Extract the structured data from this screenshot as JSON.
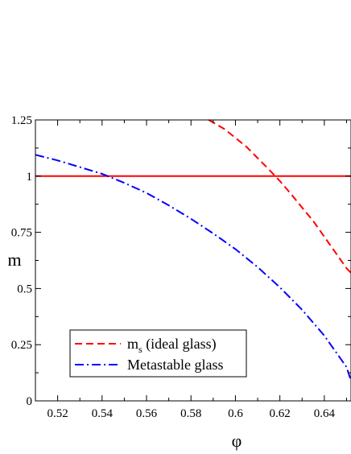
{
  "chart_data": {
    "type": "line",
    "title": "",
    "xlabel": "φ",
    "ylabel": "m",
    "xlim": [
      0.51,
      0.652
    ],
    "ylim": [
      0,
      1.25
    ],
    "xticks": [
      {
        "value": 0.52,
        "label": "0.52"
      },
      {
        "value": 0.54,
        "label": "0.54"
      },
      {
        "value": 0.56,
        "label": "0.56"
      },
      {
        "value": 0.58,
        "label": "0.58"
      },
      {
        "value": 0.6,
        "label": "0.6"
      },
      {
        "value": 0.62,
        "label": "0.62"
      },
      {
        "value": 0.64,
        "label": "0.64"
      }
    ],
    "yticks": [
      {
        "value": 0,
        "label": "0"
      },
      {
        "value": 0.25,
        "label": "0.25"
      },
      {
        "value": 0.5,
        "label": "0.5"
      },
      {
        "value": 0.75,
        "label": "0.75"
      },
      {
        "value": 1,
        "label": "1"
      },
      {
        "value": 1.25,
        "label": "1.25"
      }
    ],
    "grid": false,
    "legend_position": "bottom-left",
    "reference_lines": [
      {
        "y": 1,
        "color": "#ff0000",
        "style": "solid"
      }
    ],
    "series": [
      {
        "name": "m",
        "subscript": "s",
        "name_suffix": " (ideal glass)",
        "color": "#ff0000",
        "style": "dashed",
        "x": [
          0.588,
          0.595,
          0.6,
          0.605,
          0.61,
          0.615,
          0.62,
          0.625,
          0.63,
          0.635,
          0.64,
          0.645,
          0.65,
          0.652
        ],
        "y": [
          1.25,
          1.21,
          1.17,
          1.13,
          1.08,
          1.03,
          0.978,
          0.92,
          0.86,
          0.8,
          0.73,
          0.66,
          0.59,
          0.57
        ]
      },
      {
        "name": "Metastable glass",
        "color": "#0000ff",
        "style": "dashdot",
        "x": [
          0.51,
          0.52,
          0.53,
          0.54,
          0.55,
          0.56,
          0.57,
          0.58,
          0.59,
          0.6,
          0.61,
          0.62,
          0.63,
          0.64,
          0.65,
          0.652
        ],
        "y": [
          1.095,
          1.07,
          1.04,
          1.01,
          0.97,
          0.925,
          0.87,
          0.81,
          0.745,
          0.675,
          0.595,
          0.505,
          0.405,
          0.29,
          0.15,
          0.09
        ]
      }
    ]
  }
}
